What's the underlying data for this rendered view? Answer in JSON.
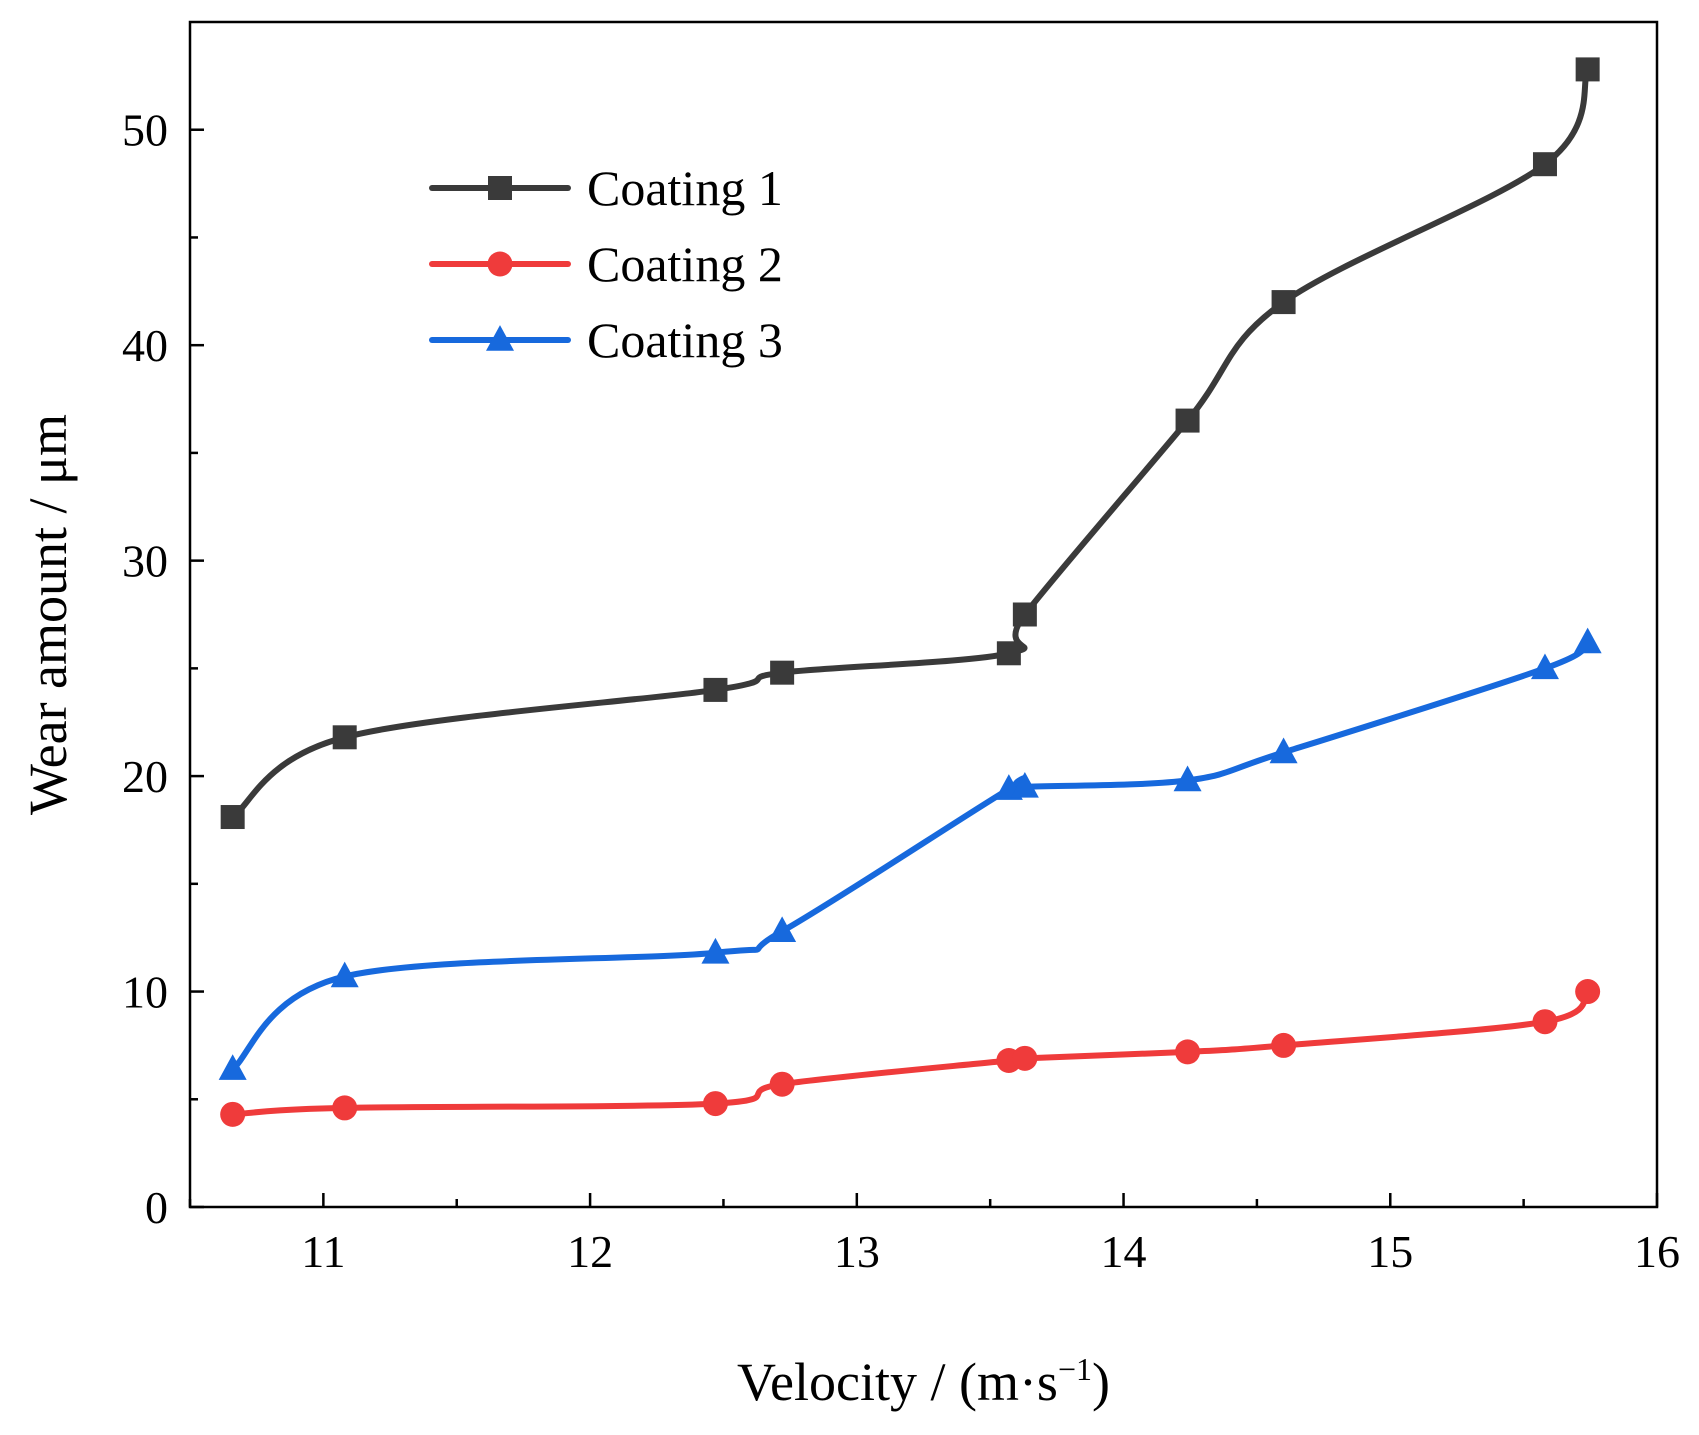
{
  "chart_data": {
    "type": "line",
    "title": "",
    "xlabel": "Velocity / (m·s",
    "xlabel_close": ")",
    "xlabel_sup": "−1",
    "ylabel": "Wear amount / μm",
    "xlim": [
      10.5,
      16
    ],
    "ylim": [
      0,
      55
    ],
    "xticks": [
      11,
      12,
      13,
      14,
      15,
      16
    ],
    "yticks": [
      0,
      10,
      20,
      30,
      40,
      50
    ],
    "legend_position": "top-left",
    "grid": false,
    "series": [
      {
        "name": "Coating 1",
        "color": "#3a3a3a",
        "marker": "square",
        "x": [
          10.66,
          11.08,
          12.47,
          12.72,
          13.57,
          13.63,
          14.24,
          14.6,
          15.58,
          15.74
        ],
        "y": [
          18.1,
          21.8,
          24.0,
          24.8,
          25.7,
          27.5,
          36.5,
          42.0,
          48.4,
          52.8
        ]
      },
      {
        "name": "Coating 2",
        "color": "#ef3b3b",
        "marker": "circle",
        "x": [
          10.66,
          11.08,
          12.47,
          12.72,
          13.57,
          13.63,
          14.24,
          14.6,
          15.58,
          15.74
        ],
        "y": [
          4.3,
          4.6,
          4.8,
          5.7,
          6.8,
          6.9,
          7.2,
          7.5,
          8.6,
          10.0
        ]
      },
      {
        "name": "Coating 3",
        "color": "#1769dd",
        "marker": "triangle",
        "x": [
          10.66,
          11.08,
          12.47,
          12.72,
          13.57,
          13.63,
          14.24,
          14.6,
          15.58,
          15.74
        ],
        "y": [
          6.4,
          10.7,
          11.8,
          12.8,
          19.4,
          19.5,
          19.8,
          21.1,
          25.0,
          26.2
        ]
      }
    ]
  }
}
